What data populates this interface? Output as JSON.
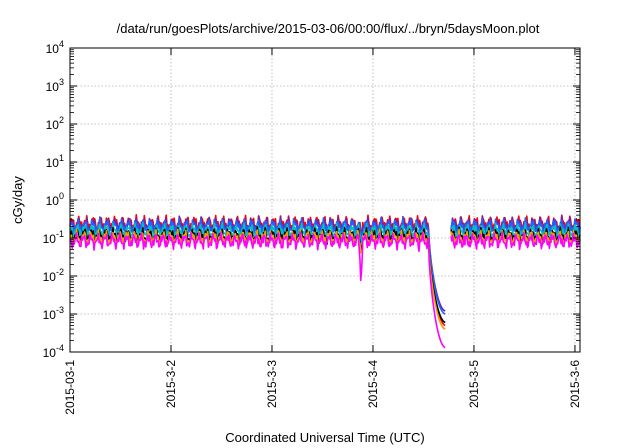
{
  "chart_data": {
    "type": "line",
    "title": "/data/run/goesPlots/archive/2015-03-06/00:00/flux/../bryn/5daysMoon.plot",
    "xlabel": "Coordinated Universal Time (UTC)",
    "ylabel": "cGy/day",
    "yscale": "log",
    "ylim": [
      0.0001,
      10000
    ],
    "xlim": [
      0,
      5.05
    ],
    "y_ticks": [
      {
        "base": "10",
        "exp": "-4",
        "value": 0.0001
      },
      {
        "base": "10",
        "exp": "-3",
        "value": 0.001
      },
      {
        "base": "10",
        "exp": "-2",
        "value": 0.01
      },
      {
        "base": "10",
        "exp": "-1",
        "value": 0.1
      },
      {
        "base": "10",
        "exp": "0",
        "value": 1
      },
      {
        "base": "10",
        "exp": "1",
        "value": 10
      },
      {
        "base": "10",
        "exp": "2",
        "value": 100
      },
      {
        "base": "10",
        "exp": "3",
        "value": 1000
      },
      {
        "base": "10",
        "exp": "4",
        "value": 10000
      }
    ],
    "x_ticks": [
      {
        "label": "2015-03-1",
        "value": 0
      },
      {
        "label": "2015-3-2",
        "value": 1
      },
      {
        "label": "2015-3-3",
        "value": 2
      },
      {
        "label": "2015-3-4",
        "value": 3
      },
      {
        "label": "2015-3-5",
        "value": 4
      },
      {
        "label": "2015-3-6",
        "value": 5
      }
    ],
    "grid": true,
    "legend": "none",
    "series": [
      {
        "color": "#ff0000",
        "base": 0.24,
        "dip_min": 0.0005
      },
      {
        "color": "#7a1fa2",
        "base": 0.22,
        "dip_min": 0.0012
      },
      {
        "color": "#2060ff",
        "base": 0.2,
        "dip_min": 0.001
      },
      {
        "color": "#00c0c0",
        "base": 0.15,
        "dip_min": 0.0006
      },
      {
        "color": "#000000",
        "base": 0.115,
        "dip_min": 0.0006
      },
      {
        "color": "#ff9900",
        "base": 0.1,
        "dip_min": 0.0004
      },
      {
        "color": "#ff00ff",
        "base": 0.083,
        "dip_min": 0.00013
      }
    ],
    "events": [
      {
        "type": "spike_down",
        "x": 2.88,
        "min": 0.009
      },
      {
        "type": "dropout",
        "x_start": 3.55,
        "x_end": 3.72
      }
    ]
  }
}
